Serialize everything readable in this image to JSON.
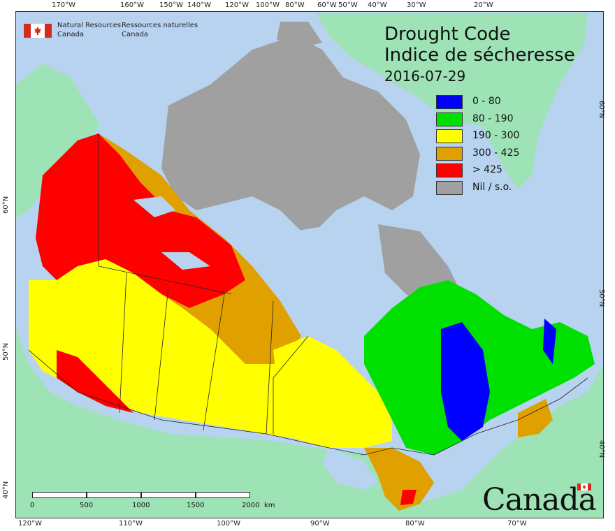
{
  "map": {
    "title_en": "Drought Code",
    "title_fr": "Indice de sécheresse",
    "date": "2016-07-29",
    "legend": [
      {
        "label": "0 - 80",
        "color": "#0000ff"
      },
      {
        "label": "80 - 190",
        "color": "#00e000"
      },
      {
        "label": "190 - 300",
        "color": "#ffff00"
      },
      {
        "label": "300 - 425",
        "color": "#e0a000"
      },
      {
        "label": "> 425",
        "color": "#ff0000"
      },
      {
        "label": "Nil / s.o.",
        "color": "#a0a0a0"
      }
    ],
    "colors": {
      "water": "#b7d3ef",
      "land_outside": "#9ee3b6",
      "no_data": "#a0a0a0",
      "border": "#222222"
    }
  },
  "agency": {
    "name_en_line1": "Natural Resources",
    "name_en_line2": "Canada",
    "name_fr_line1": "Ressources naturelles",
    "name_fr_line2": "Canada"
  },
  "graticule": {
    "top": [
      "170°W",
      "160°W",
      "150°W",
      "140°W",
      "120°W",
      "100°W",
      "80°W",
      "60°W",
      "50°W",
      "40°W",
      "30°W",
      "20°W"
    ],
    "bottom": [
      "120°W",
      "110°W",
      "100°W",
      "90°W",
      "80°W",
      "70°W"
    ],
    "left": [
      "60°N",
      "50°N",
      "40°N"
    ],
    "right": [
      "60°N",
      "50°N",
      "40°N"
    ]
  },
  "scale_bar": {
    "labels": [
      "0",
      "500",
      "1000",
      "1500",
      "2000"
    ],
    "unit": "km"
  },
  "wordmark": "Canada"
}
